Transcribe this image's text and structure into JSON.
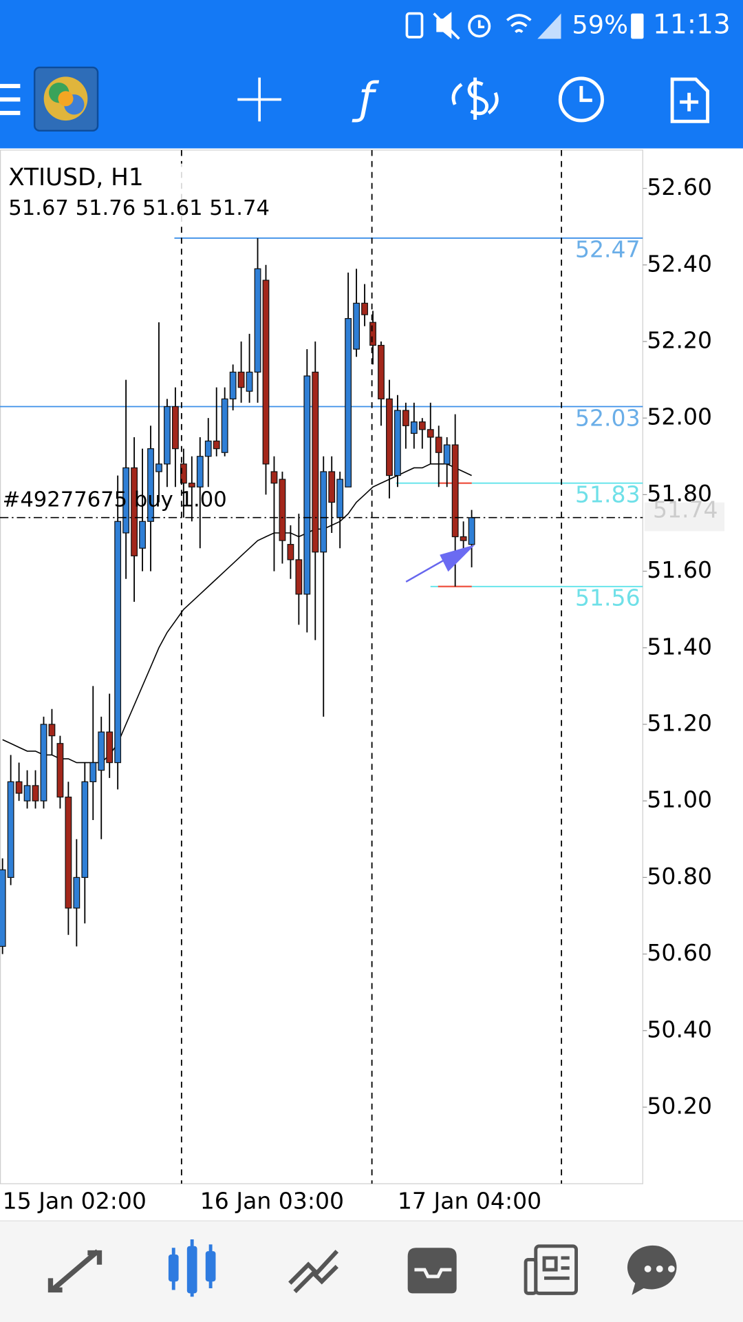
{
  "status_bar": {
    "battery": "59%",
    "time": "11:13"
  },
  "chart_data": {
    "type": "candlestick",
    "title": "XTIUSD, H1",
    "subtitle": "51.67 51.76 51.61 51.74",
    "categories": [
      "15 Jan 02:00",
      null,
      null,
      null,
      null,
      null,
      null,
      null,
      null,
      null,
      null,
      null,
      null,
      null,
      null,
      null,
      null,
      null,
      null,
      null,
      null,
      null,
      null,
      null,
      "16 Jan 03:00",
      null,
      null,
      null,
      null,
      null,
      null,
      null,
      null,
      null,
      null,
      null,
      null,
      null,
      null,
      null,
      null,
      null,
      null,
      null,
      null,
      null,
      null,
      null,
      "17 Jan 04:00",
      null,
      null,
      null,
      null,
      null,
      null,
      null,
      null,
      null
    ],
    "open": [
      50.62,
      50.8,
      51.05,
      51.0,
      51.04,
      51.0,
      51.2,
      51.15,
      51.01,
      50.72,
      50.8,
      51.05,
      51.08,
      51.18,
      51.1,
      51.7,
      51.87,
      51.66,
      51.73,
      51.86,
      51.88,
      52.03,
      51.88,
      51.83,
      51.82,
      51.9,
      51.94,
      51.91,
      52.05,
      52.12,
      52.07,
      52.12,
      52.36,
      51.86,
      51.84,
      51.67,
      51.63,
      51.54,
      52.12,
      51.65,
      51.86,
      51.74,
      51.82,
      52.18,
      52.3,
      52.25,
      52.19,
      52.05,
      51.85,
      52.02,
      51.96,
      51.99,
      51.97,
      51.95,
      51.88,
      51.93,
      51.69,
      51.67
    ],
    "high": [
      50.85,
      51.12,
      51.1,
      51.08,
      51.08,
      51.22,
      51.24,
      51.17,
      51.05,
      50.9,
      51.1,
      51.3,
      51.22,
      51.28,
      51.85,
      52.1,
      51.95,
      51.92,
      51.98,
      52.25,
      52.05,
      52.08,
      51.92,
      51.9,
      51.95,
      52.0,
      52.08,
      52.08,
      52.14,
      52.2,
      52.22,
      52.47,
      52.4,
      51.9,
      51.86,
      51.72,
      51.75,
      52.18,
      52.2,
      51.9,
      51.9,
      51.86,
      52.38,
      52.39,
      52.35,
      52.28,
      52.2,
      52.1,
      52.06,
      52.04,
      52.04,
      52.0,
      52.04,
      51.98,
      51.95,
      52.01,
      51.73,
      51.76
    ],
    "low": [
      50.6,
      50.78,
      51.0,
      50.98,
      50.98,
      50.98,
      51.12,
      50.98,
      50.65,
      50.62,
      50.68,
      50.95,
      50.9,
      51.06,
      51.03,
      51.58,
      51.52,
      51.6,
      51.6,
      51.78,
      51.82,
      51.82,
      51.74,
      51.73,
      51.66,
      51.82,
      51.9,
      51.9,
      52.02,
      52.04,
      52.04,
      52.04,
      51.8,
      51.6,
      51.62,
      51.58,
      51.46,
      51.44,
      51.42,
      51.22,
      51.7,
      51.66,
      51.82,
      52.16,
      52.24,
      52.14,
      51.98,
      51.79,
      51.82,
      51.92,
      51.92,
      51.92,
      51.88,
      51.82,
      51.82,
      51.56,
      51.64,
      51.61
    ],
    "close": [
      50.82,
      51.05,
      51.02,
      51.04,
      51.0,
      51.2,
      51.17,
      51.01,
      50.72,
      50.8,
      51.05,
      51.1,
      51.18,
      51.1,
      51.73,
      51.87,
      51.64,
      51.73,
      51.92,
      51.88,
      52.03,
      51.92,
      51.83,
      51.82,
      51.9,
      51.94,
      51.92,
      52.05,
      52.12,
      52.08,
      52.12,
      52.39,
      51.88,
      51.83,
      51.68,
      51.63,
      51.54,
      52.11,
      51.65,
      51.86,
      51.78,
      51.84,
      52.26,
      52.3,
      52.27,
      52.19,
      52.05,
      51.85,
      52.02,
      51.98,
      51.99,
      51.97,
      51.95,
      51.91,
      51.93,
      51.69,
      51.68,
      51.74
    ],
    "up_color": "#2f7fd6",
    "down_color": "#a3271b",
    "moving_average": {
      "color": "#000000",
      "values": [
        51.16,
        51.15,
        51.14,
        51.13,
        51.13,
        51.12,
        51.12,
        51.11,
        51.11,
        51.1,
        51.1,
        51.1,
        51.1,
        51.12,
        51.15,
        51.2,
        51.25,
        51.3,
        51.35,
        51.4,
        51.44,
        51.47,
        51.5,
        51.52,
        51.54,
        51.56,
        51.58,
        51.6,
        51.62,
        51.64,
        51.66,
        51.68,
        51.69,
        51.7,
        51.7,
        51.7,
        51.69,
        51.7,
        51.71,
        51.71,
        51.72,
        51.73,
        51.75,
        51.78,
        51.8,
        51.82,
        51.83,
        51.84,
        51.85,
        51.86,
        51.87,
        51.87,
        51.88,
        51.88,
        51.88,
        51.87,
        51.86,
        51.85
      ]
    },
    "levels": [
      {
        "value": 52.47,
        "color": "#3b8fe8",
        "label_color": "#6aaee8"
      },
      {
        "value": 52.03,
        "color": "#3b8fe8",
        "label_color": "#6aaee8"
      },
      {
        "value": 51.83,
        "color": "#5fe3ea",
        "label_color": "#6fe0e8"
      },
      {
        "value": 51.56,
        "color": "#5fe3ea",
        "label_color": "#6fe0e8"
      }
    ],
    "order": {
      "label": "#49277675 buy 1.00",
      "price": 51.74
    },
    "ylim": [
      50.0,
      52.7
    ],
    "yticks": [
      {
        "value": 52.6,
        "label": "52.60"
      },
      {
        "value": 52.4,
        "label": "52.40"
      },
      {
        "value": 52.2,
        "label": "52.20"
      },
      {
        "value": 52.0,
        "label": "52.00"
      },
      {
        "value": 51.8,
        "label": "51.80"
      },
      {
        "value": 51.6,
        "label": "51.60"
      },
      {
        "value": 51.4,
        "label": "51.40"
      },
      {
        "value": 51.2,
        "label": "51.20"
      },
      {
        "value": 51.0,
        "label": "51.00"
      },
      {
        "value": 50.8,
        "label": "50.80"
      },
      {
        "value": 50.6,
        "label": "50.60"
      },
      {
        "value": 50.4,
        "label": "50.40"
      },
      {
        "value": 50.2,
        "label": "50.20"
      }
    ]
  }
}
